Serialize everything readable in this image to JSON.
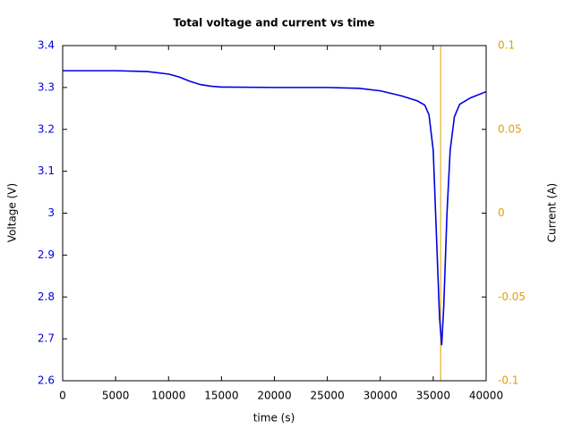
{
  "chart_data": {
    "type": "line",
    "title": "Total voltage and current vs time",
    "x_label": "time (s)",
    "y_label": "Voltage (V)",
    "y2_label": "Current (A)",
    "xlim": [
      0,
      40000
    ],
    "xticks": [
      0,
      5000,
      10000,
      15000,
      20000,
      25000,
      30000,
      35000,
      40000
    ],
    "ylim": [
      2.6,
      3.4
    ],
    "yticks": [
      2.6,
      2.7,
      2.8,
      2.9,
      3,
      3.1,
      3.2,
      3.3,
      3.4
    ],
    "y2lim": [
      -0.1,
      0.1
    ],
    "y2ticks": [
      -0.1,
      -0.05,
      0,
      0.05,
      0.1
    ],
    "series": [
      {
        "name": "Voltage",
        "color": "#0000e0",
        "x": [
          0,
          5000,
          8000,
          10000,
          11000,
          12000,
          13000,
          14000,
          15000,
          20000,
          25000,
          28000,
          30000,
          32000,
          33500,
          34200,
          34600,
          35000,
          35300,
          35600,
          35800,
          36000,
          36300,
          36600,
          37000,
          37500,
          38500,
          40000
        ],
        "values": [
          3.34,
          3.34,
          3.338,
          3.332,
          3.325,
          3.315,
          3.307,
          3.303,
          3.301,
          3.3,
          3.3,
          3.298,
          3.292,
          3.28,
          3.268,
          3.258,
          3.235,
          3.15,
          2.95,
          2.75,
          2.685,
          2.78,
          3.0,
          3.15,
          3.23,
          3.26,
          3.275,
          3.29
        ]
      },
      {
        "name": "Current",
        "color": "#e0a000",
        "axis": "y2",
        "x": [
          35700,
          35700
        ],
        "values": [
          -0.1,
          0.1
        ]
      }
    ]
  }
}
